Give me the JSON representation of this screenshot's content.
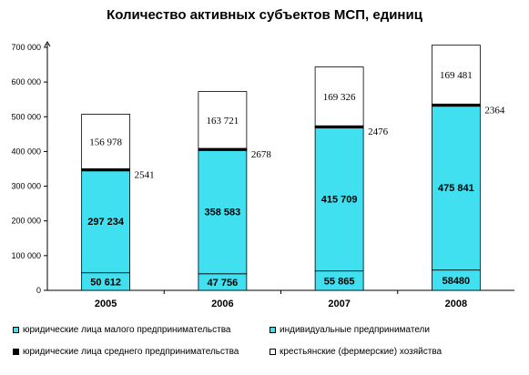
{
  "chart_data": {
    "type": "bar",
    "stacked": true,
    "title": "Количество активных субъектов МСП, единиц",
    "categories": [
      "2005",
      "2006",
      "2007",
      "2008"
    ],
    "ylim": [
      0,
      700000
    ],
    "yticks": [
      "0",
      "100 000",
      "200 000",
      "300 000",
      "400 000",
      "500 000",
      "600 000",
      "700 000"
    ],
    "grid": false,
    "legend_position": "bottom",
    "series": [
      {
        "name": "юридические лица малого предпринимательства",
        "color": "#40E0F0",
        "values": [
          50612,
          47756,
          55865,
          58480
        ],
        "labels": [
          "50 612",
          "47 756",
          "55 865",
          "58480"
        ]
      },
      {
        "name": "индивидуальные предприниматели",
        "color": "#40E0F0",
        "values": [
          297234,
          358583,
          415709,
          475841
        ],
        "labels": [
          "297 234",
          "358 583",
          "415 709",
          "475 841"
        ]
      },
      {
        "name": "юридические лица среднего предпринимательства",
        "color": "#000000",
        "values": [
          2541,
          2678,
          2476,
          2364
        ],
        "labels": [
          "2541",
          "2678",
          "2476",
          "2364"
        ]
      },
      {
        "name": "крестьянские (фермерские) хозяйства",
        "color": "#FFFFFF",
        "values": [
          156978,
          163721,
          169326,
          169481
        ],
        "labels": [
          "156 978",
          "163 721",
          "169 326",
          "169 481"
        ]
      }
    ]
  }
}
